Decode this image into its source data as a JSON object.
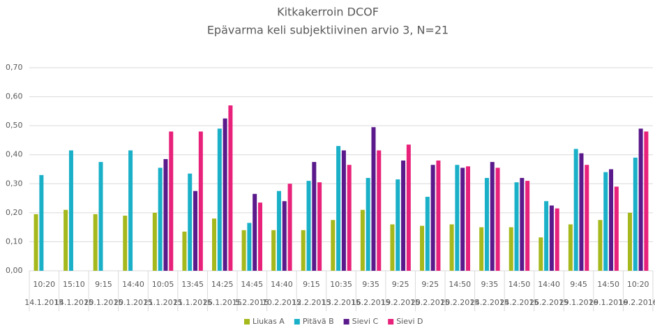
{
  "chart_data": {
    "type": "bar",
    "title": "Kitkakerroin DCOF",
    "subtitle": "Epävarma keli subjektiivinen arvio 3, N=21",
    "categories": [
      "10:20",
      "15:10",
      "9:15",
      "14:40",
      "10:05",
      "13:45",
      "14:25",
      "14:45",
      "14:40",
      "9:15",
      "10:35",
      "9:35",
      "9:25",
      "9:25",
      "14:50",
      "9:35",
      "14:50",
      "14:40",
      "9:45",
      "14:50",
      "10:20"
    ],
    "category_dates": [
      "14.1.2015",
      "14.1.2015",
      "20.1.2015",
      "20.1.2015",
      "21.1.2015",
      "21.1.2015",
      "26.1.2015",
      "5.2.2015",
      "10.2.2015",
      "12.2.2015",
      "13.2.2015",
      "16.2.2015",
      "19.2.2015",
      "20.2.2015",
      "20.2.2015",
      "24.2.2015",
      "24.2.2015",
      "26.2.2015",
      "29.1.2016",
      "29.1.2016",
      "19.2.2016"
    ],
    "series": [
      {
        "name": "Liukas A",
        "color": "#a5b81c",
        "values": [
          0.195,
          0.21,
          0.195,
          0.19,
          0.2,
          0.135,
          0.18,
          0.14,
          0.14,
          0.14,
          0.175,
          0.21,
          0.16,
          0.155,
          0.16,
          0.15,
          0.15,
          0.115,
          0.16,
          0.175,
          0.2
        ]
      },
      {
        "name": "Pitävä B",
        "color": "#1ab0c8",
        "values": [
          0.33,
          0.415,
          0.375,
          0.415,
          0.355,
          0.335,
          0.49,
          0.165,
          0.275,
          0.31,
          0.43,
          0.32,
          0.315,
          0.255,
          0.365,
          0.32,
          0.305,
          0.24,
          0.42,
          0.34,
          0.39
        ]
      },
      {
        "name": "Sievi C",
        "color": "#5b1a8c",
        "values": [
          null,
          null,
          null,
          null,
          0.385,
          0.275,
          0.525,
          0.265,
          0.24,
          0.375,
          0.415,
          0.495,
          0.38,
          0.365,
          0.355,
          0.375,
          0.32,
          0.225,
          0.405,
          0.35,
          0.49
        ]
      },
      {
        "name": "Sievi D",
        "color": "#e8217a",
        "values": [
          null,
          null,
          null,
          null,
          0.48,
          0.48,
          0.57,
          0.235,
          0.3,
          0.305,
          0.365,
          0.415,
          0.435,
          0.38,
          0.36,
          0.355,
          0.31,
          0.215,
          0.365,
          0.29,
          0.48
        ]
      }
    ],
    "ylim": [
      0,
      0.7
    ],
    "yticks": [
      {
        "value": 0,
        "label": "0,00"
      },
      {
        "value": 0.1,
        "label": "0,10"
      },
      {
        "value": 0.2,
        "label": "0,20"
      },
      {
        "value": 0.3,
        "label": "0,30"
      },
      {
        "value": 0.4,
        "label": "0,40"
      },
      {
        "value": 0.5,
        "label": "0,50"
      },
      {
        "value": 0.6,
        "label": "0,60"
      },
      {
        "value": 0.7,
        "label": "0,70"
      }
    ],
    "grid": true,
    "legend": "bottom"
  }
}
